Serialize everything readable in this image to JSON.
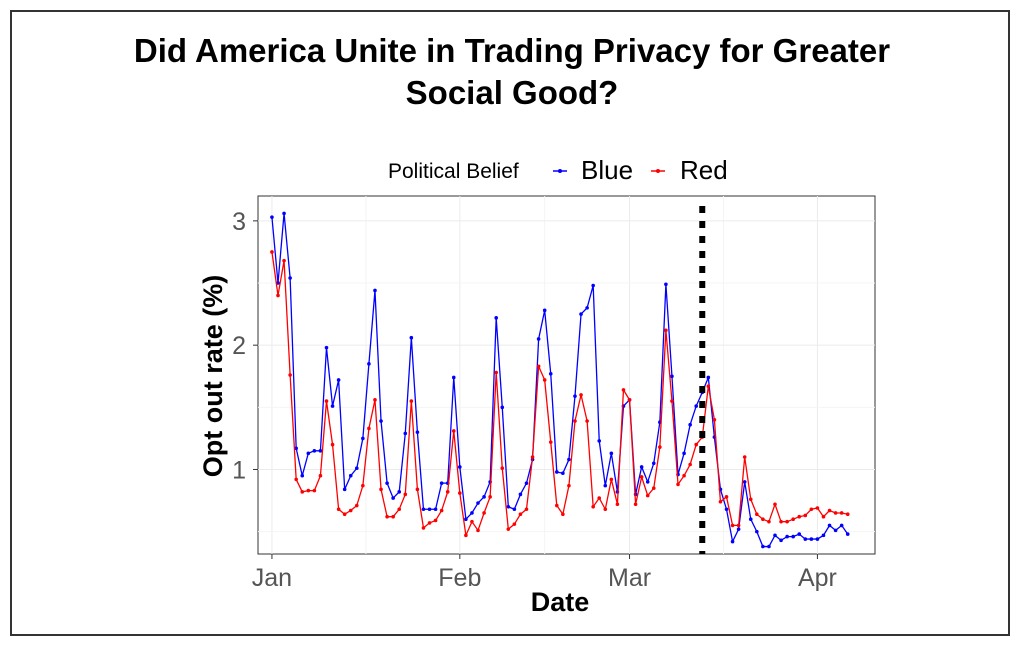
{
  "chart_data": {
    "type": "line",
    "title_line1": "Did America Unite in Trading Privacy for Greater",
    "title_line2": "Social Good?",
    "xlabel": "Date",
    "ylabel": "Opt out rate (%)",
    "legend_title": "Political Belief",
    "x_ticks": [
      {
        "label": "Jan",
        "x": 0
      },
      {
        "label": "Feb",
        "x": 31
      },
      {
        "label": "Mar",
        "x": 59
      },
      {
        "label": "Apr",
        "x": 90
      }
    ],
    "y_ticks": [
      {
        "label": "1",
        "y": 1
      },
      {
        "label": "2",
        "y": 2
      },
      {
        "label": "3",
        "y": 3
      }
    ],
    "xlim": [
      -2.3,
      99.5
    ],
    "ylim": [
      0.32,
      3.2
    ],
    "vline_x": 71,
    "series": [
      {
        "name": "Blue",
        "color": "#0000ff",
        "values": [
          3.03,
          2.5,
          3.06,
          2.54,
          1.17,
          0.95,
          1.13,
          1.15,
          1.15,
          1.98,
          1.51,
          1.72,
          0.84,
          0.95,
          1.01,
          1.25,
          1.85,
          2.44,
          1.39,
          0.89,
          0.77,
          0.82,
          1.29,
          2.06,
          1.3,
          0.68,
          0.68,
          0.68,
          0.89,
          0.89,
          1.74,
          1.02,
          0.6,
          0.65,
          0.73,
          0.78,
          0.9,
          2.22,
          1.5,
          0.7,
          0.68,
          0.8,
          0.89,
          1.08,
          2.05,
          2.28,
          1.77,
          0.98,
          0.97,
          1.08,
          1.59,
          2.25,
          2.3,
          2.48,
          1.23,
          0.87,
          1.13,
          0.82,
          1.51,
          1.56,
          0.8,
          1.02,
          0.9,
          1.05,
          1.38,
          2.49,
          1.75,
          0.96,
          1.13,
          1.36,
          1.51,
          1.62,
          1.74,
          1.26,
          0.84,
          0.68,
          0.42,
          0.52,
          0.9,
          0.6,
          0.5,
          0.38,
          0.38,
          0.47,
          0.43,
          0.46,
          0.46,
          0.48,
          0.44,
          0.44,
          0.44,
          0.47,
          0.55,
          0.51,
          0.55,
          0.48
        ]
      },
      {
        "name": "Red",
        "color": "#ff0000",
        "values": [
          2.75,
          2.4,
          2.68,
          1.76,
          0.92,
          0.82,
          0.83,
          0.83,
          0.95,
          1.55,
          1.2,
          0.68,
          0.64,
          0.67,
          0.71,
          0.87,
          1.33,
          1.56,
          0.84,
          0.62,
          0.62,
          0.68,
          0.8,
          1.55,
          0.84,
          0.53,
          0.57,
          0.59,
          0.67,
          0.82,
          1.31,
          0.81,
          0.47,
          0.58,
          0.51,
          0.65,
          0.78,
          1.78,
          1.01,
          0.52,
          0.56,
          0.64,
          0.68,
          1.1,
          1.83,
          1.72,
          1.22,
          0.71,
          0.64,
          0.87,
          1.39,
          1.6,
          1.39,
          0.7,
          0.77,
          0.68,
          0.92,
          0.72,
          1.64,
          1.56,
          0.72,
          0.94,
          0.79,
          0.85,
          1.18,
          2.12,
          1.55,
          0.88,
          0.95,
          1.04,
          1.2,
          1.26,
          1.67,
          1.4,
          0.74,
          0.78,
          0.55,
          0.55,
          1.1,
          0.76,
          0.64,
          0.6,
          0.58,
          0.72,
          0.58,
          0.58,
          0.6,
          0.62,
          0.63,
          0.68,
          0.69,
          0.62,
          0.67,
          0.65,
          0.65,
          0.64
        ]
      }
    ]
  }
}
